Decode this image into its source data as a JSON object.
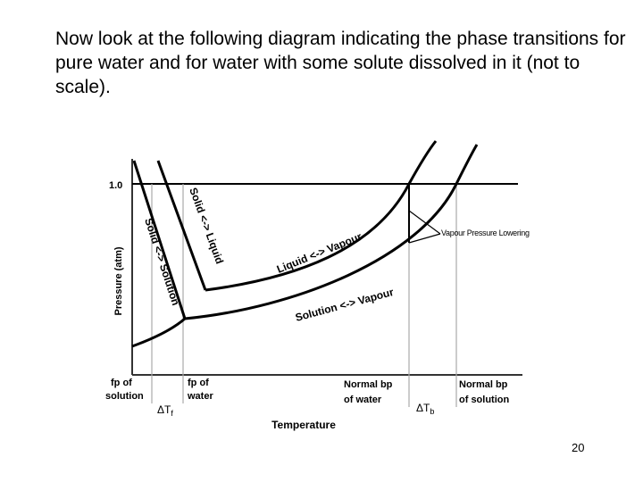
{
  "slide": {
    "intro_text": "Now look at the following diagram indicating the phase transitions for pure water and for water with some solute dissolved in it (not to scale).",
    "page_number": "20"
  },
  "diagram": {
    "y_axis_label": "Pressure (atm)",
    "x_axis_label": "Temperature",
    "pressure_tick": "1.0",
    "curve_labels": {
      "solid_liquid": "Solid <-> Liquid",
      "solid_solution": "Solid <-> Solution",
      "liquid_vapour": "Liquid <-> Vapour",
      "solution_vapour": "Solution <-> Vapour",
      "vapour_pressure_lowering": "Vapour Pressure Lowering"
    },
    "markers": {
      "fp_solution": [
        "fp of",
        "solution"
      ],
      "fp_water": [
        "fp of",
        "water"
      ],
      "bp_water": [
        "Normal bp",
        "of water"
      ],
      "bp_solution": [
        "Normal bp",
        "of solution"
      ],
      "delta_tf": {
        "delta": "ΔT",
        "sub": "f"
      },
      "delta_tb": {
        "delta": "ΔT",
        "sub": "b"
      }
    },
    "colors": {
      "line": "#000000",
      "guide": "#aaaaaa",
      "axis": "#333333"
    }
  }
}
